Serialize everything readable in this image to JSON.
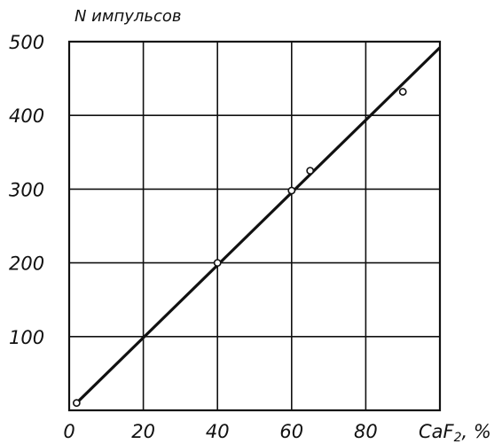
{
  "chart_data": {
    "type": "scatter",
    "ylabel": "N импульсов",
    "xlabel": "CaF",
    "xlabel_sub": "2",
    "xlabel_unit": ", %",
    "xlim": [
      0,
      100
    ],
    "ylim": [
      0,
      500
    ],
    "x_ticks": [
      "0",
      "20",
      "40",
      "60",
      "80"
    ],
    "y_ticks": [
      "500",
      "400",
      "300",
      "200",
      "100"
    ],
    "grid": true,
    "points": [
      {
        "x": 2,
        "y": 10
      },
      {
        "x": 40,
        "y": 200
      },
      {
        "x": 60,
        "y": 298
      },
      {
        "x": 65,
        "y": 325
      },
      {
        "x": 90,
        "y": 432
      }
    ],
    "fit_line": {
      "x": [
        2,
        100
      ],
      "y": [
        10,
        492
      ]
    }
  }
}
